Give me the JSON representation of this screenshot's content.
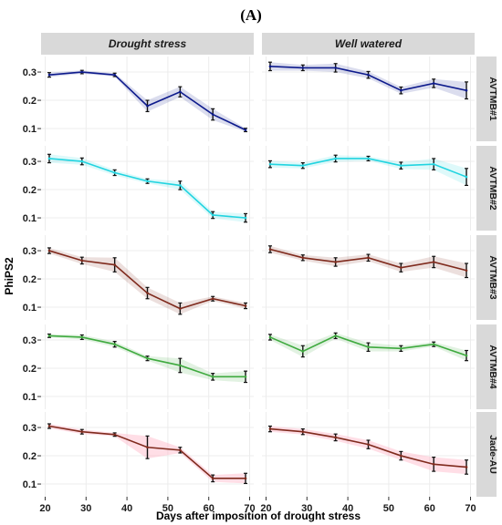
{
  "figure_label": "(A)",
  "chart_data": {
    "type": "line",
    "xlabel": "Days after imposition of drought stress",
    "ylabel": "PhiPS2",
    "xlim": [
      19,
      71
    ],
    "ylim": [
      0.055,
      0.355
    ],
    "x_ticks": [
      20,
      30,
      40,
      50,
      60,
      70
    ],
    "y_ticks": [
      0.1,
      0.2,
      0.3
    ],
    "grid": true,
    "columns": [
      "Drought stress",
      "Well watered"
    ],
    "rows": [
      {
        "label": "AVTMB#1",
        "color": "#0d1a8c",
        "panels": [
          {
            "x": [
              21,
              29,
              37,
              45,
              53,
              61,
              69
            ],
            "y": [
              0.29,
              0.3,
              0.29,
              0.18,
              0.23,
              0.15,
              0.095
            ],
            "err": [
              0.008,
              0.006,
              0.006,
              0.02,
              0.018,
              0.02,
              0.006
            ]
          },
          {
            "x": [
              21,
              29,
              37,
              45,
              53,
              61,
              69
            ],
            "y": [
              0.32,
              0.315,
              0.315,
              0.29,
              0.235,
              0.26,
              0.235
            ],
            "err": [
              0.015,
              0.01,
              0.015,
              0.012,
              0.012,
              0.015,
              0.03
            ]
          }
        ]
      },
      {
        "label": "AVTMB#2",
        "color": "#21d4e0",
        "panels": [
          {
            "x": [
              21,
              29,
              37,
              45,
              53,
              61,
              69
            ],
            "y": [
              0.31,
              0.3,
              0.26,
              0.23,
              0.215,
              0.11,
              0.1
            ],
            "err": [
              0.015,
              0.012,
              0.01,
              0.008,
              0.015,
              0.012,
              0.015
            ]
          },
          {
            "x": [
              21,
              29,
              37,
              45,
              53,
              61,
              69
            ],
            "y": [
              0.29,
              0.285,
              0.31,
              0.31,
              0.285,
              0.29,
              0.245
            ],
            "err": [
              0.012,
              0.01,
              0.012,
              0.008,
              0.012,
              0.02,
              0.03
            ]
          }
        ]
      },
      {
        "label": "AVTMB#3",
        "color": "#7f2a1d",
        "panels": [
          {
            "x": [
              21,
              29,
              37,
              45,
              53,
              61,
              69
            ],
            "y": [
              0.3,
              0.265,
              0.25,
              0.15,
              0.095,
              0.13,
              0.105
            ],
            "err": [
              0.01,
              0.012,
              0.025,
              0.02,
              0.02,
              0.008,
              0.01
            ]
          },
          {
            "x": [
              21,
              29,
              37,
              45,
              53,
              61,
              69
            ],
            "y": [
              0.305,
              0.275,
              0.26,
              0.275,
              0.24,
              0.26,
              0.23
            ],
            "err": [
              0.012,
              0.01,
              0.015,
              0.012,
              0.015,
              0.02,
              0.025
            ]
          }
        ]
      },
      {
        "label": "AVTMB#4",
        "color": "#3faa3f",
        "panels": [
          {
            "x": [
              21,
              29,
              37,
              45,
              53,
              61,
              69
            ],
            "y": [
              0.315,
              0.31,
              0.285,
              0.235,
              0.21,
              0.17,
              0.17
            ],
            "err": [
              0.006,
              0.008,
              0.01,
              0.008,
              0.025,
              0.012,
              0.02
            ]
          },
          {
            "x": [
              21,
              29,
              37,
              45,
              53,
              61,
              69
            ],
            "y": [
              0.31,
              0.26,
              0.315,
              0.275,
              0.27,
              0.285,
              0.245
            ],
            "err": [
              0.01,
              0.02,
              0.01,
              0.015,
              0.01,
              0.008,
              0.018
            ]
          }
        ]
      },
      {
        "label": "Jade-AU",
        "color": "#7f2a1d",
        "band_color": "#ffb6c8",
        "panels": [
          {
            "x": [
              21,
              29,
              37,
              45,
              53,
              61,
              69
            ],
            "y": [
              0.305,
              0.285,
              0.275,
              0.23,
              0.22,
              0.12,
              0.12
            ],
            "err": [
              0.008,
              0.008,
              0.006,
              0.04,
              0.01,
              0.012,
              0.018
            ]
          },
          {
            "x": [
              21,
              29,
              37,
              45,
              53,
              61,
              69
            ],
            "y": [
              0.295,
              0.285,
              0.265,
              0.24,
              0.2,
              0.17,
              0.16
            ],
            "err": [
              0.01,
              0.01,
              0.012,
              0.015,
              0.015,
              0.025,
              0.025
            ]
          }
        ]
      }
    ]
  }
}
